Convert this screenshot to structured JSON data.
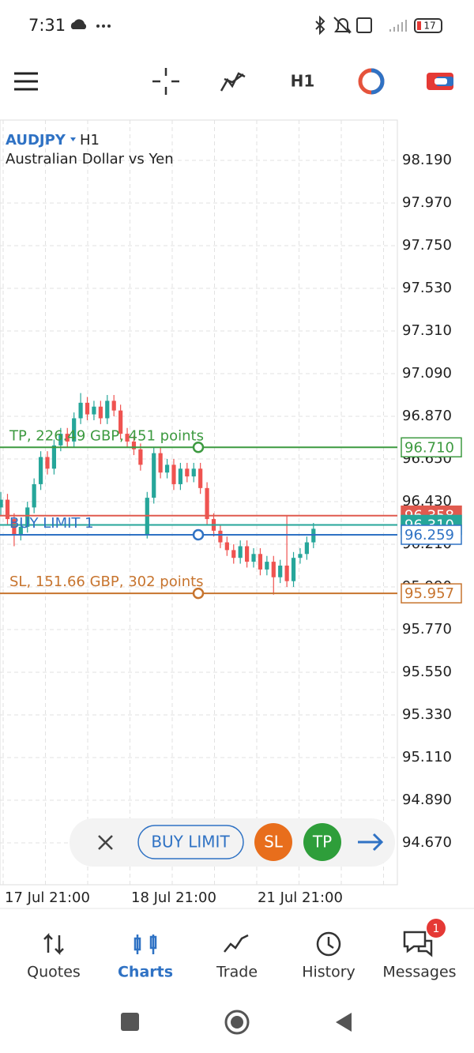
{
  "status_bar": {
    "time": "7:31",
    "battery": "17"
  },
  "toolbar": {
    "timeframe": "H1"
  },
  "chart_data": {
    "type": "candlestick",
    "symbol": "AUDJPY",
    "timeframe": "H1",
    "description": "Australian Dollar vs Yen",
    "categories": [
      null,
      null,
      null,
      null,
      null,
      null,
      null,
      "17 Jul 21:00",
      null,
      null,
      null,
      null,
      null,
      null,
      null,
      null,
      null,
      null,
      null,
      null,
      null,
      null,
      null,
      null,
      null,
      null,
      "18 Jul 21:00",
      null,
      null,
      null,
      null,
      null,
      null,
      null,
      null,
      null,
      null,
      null,
      null,
      null,
      null,
      null,
      null,
      null,
      null,
      "21 Jul 21:00",
      null,
      null
    ],
    "open": [
      96.4,
      96.44,
      96.34,
      96.26,
      96.3,
      96.4,
      96.52,
      96.66,
      96.6,
      96.72,
      96.78,
      96.74,
      96.86,
      96.94,
      96.88,
      96.92,
      96.86,
      96.95,
      96.9,
      96.78,
      96.74,
      96.7,
      96.26,
      96.45,
      96.68,
      96.58,
      96.62,
      96.52,
      96.6,
      96.56,
      96.6,
      96.5,
      96.34,
      96.28,
      96.22,
      96.18,
      96.14,
      96.2,
      96.12,
      96.16,
      96.08,
      96.12,
      96.04,
      96.1,
      96.02,
      96.14,
      96.16,
      96.22
    ],
    "high": [
      96.48,
      96.47,
      96.37,
      96.33,
      96.43,
      96.55,
      96.69,
      96.69,
      96.75,
      96.81,
      96.81,
      96.89,
      96.99,
      96.97,
      96.95,
      96.95,
      96.98,
      96.98,
      96.93,
      96.81,
      96.77,
      96.73,
      96.48,
      96.71,
      96.71,
      96.65,
      96.65,
      96.63,
      96.63,
      96.63,
      96.63,
      96.53,
      96.37,
      96.31,
      96.25,
      96.21,
      96.23,
      96.23,
      96.19,
      96.19,
      96.15,
      96.15,
      96.13,
      96.36,
      96.17,
      96.19,
      96.25,
      96.32
    ],
    "low": [
      96.36,
      96.31,
      96.2,
      96.23,
      96.27,
      96.37,
      96.49,
      96.57,
      96.57,
      96.69,
      96.71,
      96.71,
      96.83,
      96.85,
      96.85,
      96.83,
      96.83,
      96.87,
      96.75,
      96.71,
      96.67,
      96.59,
      96.24,
      96.42,
      96.55,
      96.55,
      96.49,
      96.49,
      96.53,
      96.53,
      96.47,
      96.31,
      96.25,
      96.19,
      96.15,
      96.11,
      96.11,
      96.09,
      96.09,
      96.05,
      96.05,
      95.95,
      96.01,
      95.99,
      95.99,
      96.11,
      96.13,
      96.19
    ],
    "close": [
      96.44,
      96.34,
      96.26,
      96.3,
      96.4,
      96.52,
      96.66,
      96.6,
      96.72,
      96.78,
      96.74,
      96.86,
      96.94,
      96.88,
      96.92,
      96.86,
      96.95,
      96.9,
      96.78,
      96.74,
      96.7,
      96.62,
      96.45,
      96.68,
      96.58,
      96.62,
      96.52,
      96.6,
      96.56,
      96.6,
      96.5,
      96.34,
      96.28,
      96.22,
      96.18,
      96.14,
      96.2,
      96.12,
      96.16,
      96.08,
      96.12,
      96.04,
      96.1,
      96.02,
      96.14,
      96.16,
      96.22,
      96.29
    ],
    "up_color": "#26a69a",
    "down_color": "#ef5350",
    "ylim": [
      94.454,
      98.398
    ],
    "yticks": [
      {
        "value": 98.19,
        "label": "98.190"
      },
      {
        "value": 97.97,
        "label": "97.970"
      },
      {
        "value": 97.75,
        "label": "97.750"
      },
      {
        "value": 97.53,
        "label": "97.530"
      },
      {
        "value": 97.31,
        "label": "97.310"
      },
      {
        "value": 97.09,
        "label": "97.090"
      },
      {
        "value": 96.87,
        "label": "96.870"
      },
      {
        "value": 96.65,
        "label": "96.650"
      },
      {
        "value": 96.43,
        "label": "96.430"
      },
      {
        "value": 96.21,
        "label": "96.210"
      },
      {
        "value": 95.99,
        "label": "95.990"
      },
      {
        "value": 95.77,
        "label": "95.770"
      },
      {
        "value": 95.55,
        "label": "95.550"
      },
      {
        "value": 95.33,
        "label": "95.330"
      },
      {
        "value": 95.11,
        "label": "95.110"
      },
      {
        "value": 94.89,
        "label": "94.890"
      },
      {
        "value": 94.67,
        "label": "94.670"
      }
    ],
    "grid": true,
    "levels": [
      {
        "value": 96.358,
        "value_label": "96.358",
        "color": "#e05a4f",
        "style": "filled"
      },
      {
        "value": 96.31,
        "value_label": "96.310",
        "color": "#26a69a",
        "style": "filled"
      },
      {
        "label": "TP, 226.49 GBP, 451 points",
        "value": 96.71,
        "value_label": "96.710",
        "color": "#3d9a40",
        "style": "outline"
      },
      {
        "label": "BUY LIMIT 1",
        "value": 96.259,
        "value_label": "96.259",
        "color": "#2f72c4",
        "style": "outline"
      },
      {
        "label": "SL, 151.66 GBP, 302 points",
        "value": 95.957,
        "value_label": "95.957",
        "color": "#c7742e",
        "style": "outline"
      }
    ]
  },
  "order_panel": {
    "buy_limit": "BUY LIMIT",
    "sl": "SL",
    "tp": "TP"
  },
  "nav": [
    "Quotes",
    "Charts",
    "Trade",
    "History",
    "Messages"
  ],
  "messages_badge": "1"
}
